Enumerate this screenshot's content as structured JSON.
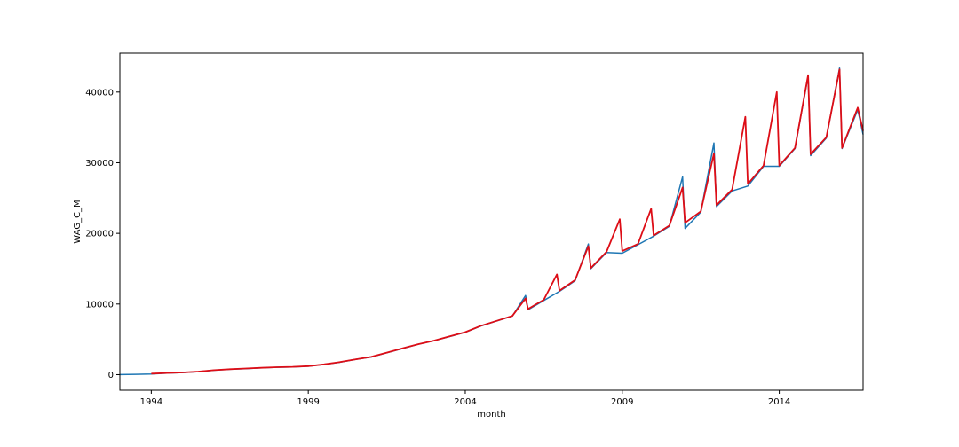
{
  "chart_data": {
    "type": "line",
    "xlabel": "month",
    "ylabel": "WAG_C_M",
    "xlim": [
      1993.0,
      2016.67
    ],
    "ylim": [
      -2200,
      45500
    ],
    "x_ticks": [
      1994,
      1999,
      2004,
      2009,
      2014
    ],
    "y_ticks": [
      0,
      10000,
      20000,
      30000,
      40000
    ],
    "grid": false,
    "legend": "none",
    "series": [
      {
        "color": "#1f77b4",
        "points": [
          [
            1993.0,
            15
          ],
          [
            1993.5,
            45
          ],
          [
            1994.0,
            100
          ],
          [
            1994.5,
            220
          ],
          [
            1995.0,
            300
          ],
          [
            1995.5,
            420
          ],
          [
            1996.0,
            620
          ],
          [
            1996.5,
            760
          ],
          [
            1997.0,
            850
          ],
          [
            1997.5,
            960
          ],
          [
            1998.0,
            1050
          ],
          [
            1998.5,
            1100
          ],
          [
            1999.0,
            1200
          ],
          [
            1999.5,
            1450
          ],
          [
            2000.0,
            1750
          ],
          [
            2000.5,
            2150
          ],
          [
            2001.0,
            2500
          ],
          [
            2001.5,
            3100
          ],
          [
            2002.0,
            3700
          ],
          [
            2002.5,
            4300
          ],
          [
            2003.0,
            4800
          ],
          [
            2003.5,
            5400
          ],
          [
            2004.0,
            6000
          ],
          [
            2004.5,
            6900
          ],
          [
            2005.0,
            7600
          ],
          [
            2005.5,
            8300
          ],
          [
            2005.92,
            11200
          ],
          [
            2006.0,
            9200
          ],
          [
            2006.5,
            10500
          ],
          [
            2007.0,
            11800
          ],
          [
            2007.5,
            13300
          ],
          [
            2007.92,
            18500
          ],
          [
            2008.0,
            15000
          ],
          [
            2008.5,
            17300
          ],
          [
            2009.0,
            17200
          ],
          [
            2009.5,
            18400
          ],
          [
            2010.0,
            19600
          ],
          [
            2010.5,
            21000
          ],
          [
            2010.92,
            28000
          ],
          [
            2011.0,
            20700
          ],
          [
            2011.5,
            23000
          ],
          [
            2011.92,
            32800
          ],
          [
            2012.0,
            23800
          ],
          [
            2012.5,
            26000
          ],
          [
            2013.0,
            26700
          ],
          [
            2013.5,
            29500
          ],
          [
            2014.0,
            29500
          ],
          [
            2014.5,
            32000
          ],
          [
            2014.92,
            42300
          ],
          [
            2015.0,
            31000
          ],
          [
            2015.5,
            33500
          ],
          [
            2015.92,
            43400
          ],
          [
            2016.0,
            32000
          ],
          [
            2016.5,
            37500
          ],
          [
            2016.67,
            34000
          ]
        ]
      },
      {
        "color": "#dd0d16",
        "points": [
          [
            1994.0,
            150
          ],
          [
            1994.5,
            230
          ],
          [
            1995.0,
            310
          ],
          [
            1995.5,
            430
          ],
          [
            1996.0,
            640
          ],
          [
            1996.5,
            780
          ],
          [
            1997.0,
            870
          ],
          [
            1997.5,
            970
          ],
          [
            1998.0,
            1060
          ],
          [
            1998.5,
            1110
          ],
          [
            1999.0,
            1220
          ],
          [
            1999.5,
            1470
          ],
          [
            2000.0,
            1780
          ],
          [
            2000.5,
            2170
          ],
          [
            2001.0,
            2520
          ],
          [
            2001.5,
            3120
          ],
          [
            2002.0,
            3720
          ],
          [
            2002.5,
            4320
          ],
          [
            2003.0,
            4820
          ],
          [
            2003.5,
            5420
          ],
          [
            2004.0,
            6020
          ],
          [
            2004.5,
            6920
          ],
          [
            2005.0,
            7620
          ],
          [
            2005.5,
            8320
          ],
          [
            2005.92,
            10800
          ],
          [
            2006.0,
            9300
          ],
          [
            2006.5,
            10600
          ],
          [
            2006.92,
            14200
          ],
          [
            2007.0,
            11900
          ],
          [
            2007.5,
            13400
          ],
          [
            2007.92,
            18200
          ],
          [
            2008.0,
            15100
          ],
          [
            2008.5,
            17400
          ],
          [
            2008.92,
            22000
          ],
          [
            2009.0,
            17500
          ],
          [
            2009.5,
            18500
          ],
          [
            2009.92,
            23500
          ],
          [
            2010.0,
            19700
          ],
          [
            2010.5,
            21100
          ],
          [
            2010.92,
            26500
          ],
          [
            2011.0,
            21500
          ],
          [
            2011.5,
            23100
          ],
          [
            2011.92,
            31300
          ],
          [
            2012.0,
            24000
          ],
          [
            2012.5,
            26200
          ],
          [
            2012.92,
            36500
          ],
          [
            2013.0,
            27000
          ],
          [
            2013.5,
            29600
          ],
          [
            2013.92,
            40000
          ],
          [
            2014.0,
            29600
          ],
          [
            2014.5,
            32100
          ],
          [
            2014.92,
            42400
          ],
          [
            2015.0,
            31200
          ],
          [
            2015.5,
            33600
          ],
          [
            2015.92,
            43200
          ],
          [
            2016.0,
            32100
          ],
          [
            2016.5,
            37800
          ],
          [
            2016.67,
            34500
          ]
        ]
      }
    ]
  }
}
